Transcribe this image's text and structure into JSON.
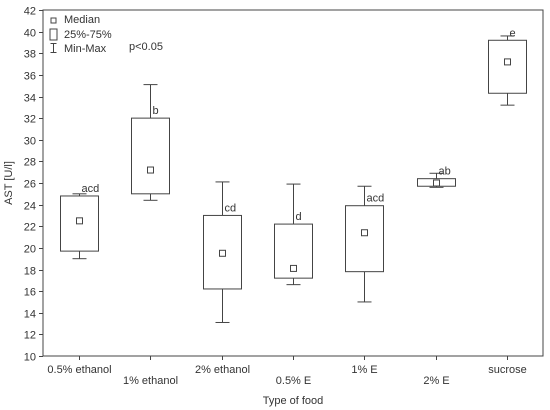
{
  "chart_data": {
    "type": "boxplot",
    "xlabel": "Type of food",
    "ylabel": "AST [U/l]",
    "ylim": [
      10,
      42
    ],
    "yticks": [
      10,
      12,
      14,
      16,
      18,
      20,
      22,
      24,
      26,
      28,
      30,
      32,
      34,
      36,
      38,
      40,
      42
    ],
    "grid": false,
    "legend": {
      "position": "top-left",
      "entries": [
        "Median",
        "25%-75%",
        "Min-Max"
      ]
    },
    "annotation": "p<0.05",
    "categories": [
      "0.5% ethanol",
      "1% ethanol",
      "2% ethanol",
      "0.5% E",
      "1% E",
      "2% E",
      "sucrose"
    ],
    "boxes": [
      {
        "category": "0.5% ethanol",
        "min": 19.0,
        "q1": 19.7,
        "median": 22.5,
        "q3": 24.8,
        "max": 25.0,
        "letters": "acd"
      },
      {
        "category": "1% ethanol",
        "min": 24.4,
        "q1": 25.0,
        "median": 27.2,
        "q3": 32.0,
        "max": 35.1,
        "letters": "b"
      },
      {
        "category": "2% ethanol",
        "min": 13.1,
        "q1": 16.2,
        "median": 19.5,
        "q3": 23.0,
        "max": 26.1,
        "letters": "cd"
      },
      {
        "category": "0.5% E",
        "min": 16.6,
        "q1": 17.2,
        "median": 18.1,
        "q3": 22.2,
        "max": 25.9,
        "letters": "d"
      },
      {
        "category": "1% E",
        "min": 15.0,
        "q1": 17.8,
        "median": 21.4,
        "q3": 23.9,
        "max": 25.7,
        "letters": "acd"
      },
      {
        "category": "2% E",
        "min": 25.6,
        "q1": 25.7,
        "median": 26.0,
        "q3": 26.4,
        "max": 26.9,
        "letters": "ab"
      },
      {
        "category": "sucrose",
        "min": 33.2,
        "q1": 34.3,
        "median": 37.2,
        "q3": 39.2,
        "max": 39.6,
        "letters": "e"
      }
    ]
  }
}
